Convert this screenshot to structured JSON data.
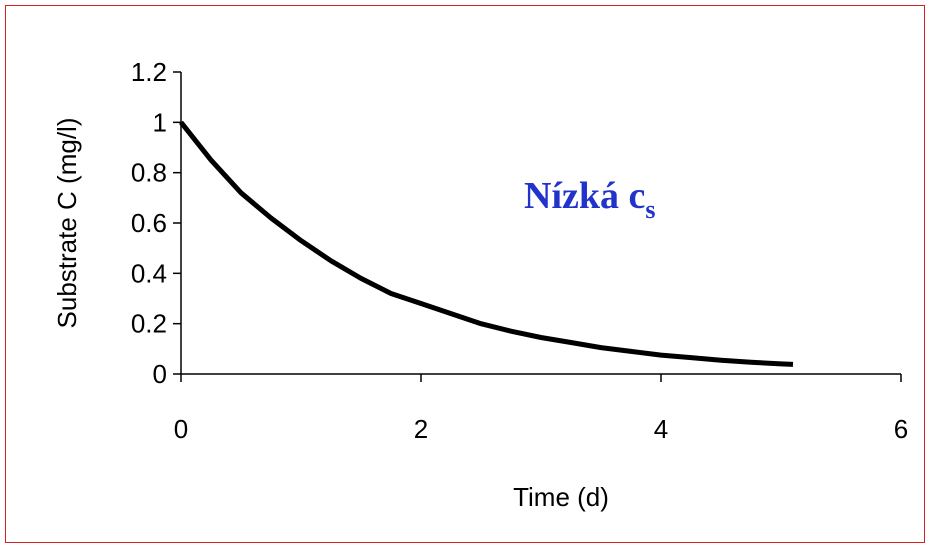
{
  "chart_data": {
    "type": "line",
    "title": "",
    "xlabel": "Time (d)",
    "ylabel": "Substrate C (mg/l)",
    "xlim": [
      0,
      6
    ],
    "ylim": [
      0,
      1.2
    ],
    "xticks": [
      0,
      2,
      4,
      6
    ],
    "yticks": [
      0,
      0.2,
      0.4,
      0.6,
      0.8,
      1,
      1.2
    ],
    "xtick_labels": [
      "0",
      "2",
      "4",
      "6"
    ],
    "ytick_labels": [
      "0",
      "0.2",
      "0.4",
      "0.6",
      "0.8",
      "1",
      "1.2"
    ],
    "grid": false,
    "legend": "none",
    "annotation": {
      "text": "Nízká c",
      "subscript": "s",
      "color": "#2233cc"
    },
    "series": [
      {
        "color": "#000000",
        "x": [
          0,
          0.25,
          0.5,
          0.75,
          1,
          1.25,
          1.5,
          1.75,
          2,
          2.25,
          2.5,
          2.75,
          3,
          3.25,
          3.5,
          3.75,
          4,
          4.25,
          4.5,
          4.75,
          5,
          5.1
        ],
        "y": [
          1.0,
          0.85,
          0.72,
          0.62,
          0.53,
          0.45,
          0.38,
          0.32,
          0.28,
          0.24,
          0.2,
          0.17,
          0.145,
          0.125,
          0.105,
          0.09,
          0.075,
          0.065,
          0.055,
          0.047,
          0.04,
          0.038
        ]
      }
    ]
  }
}
